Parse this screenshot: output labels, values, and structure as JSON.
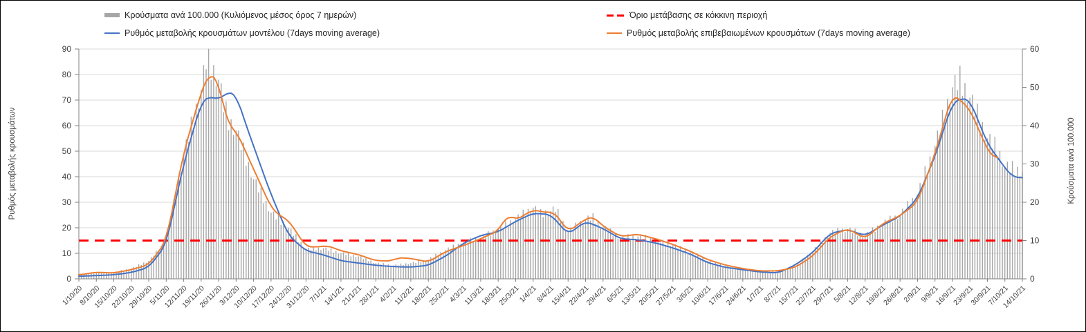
{
  "legend": {
    "items": [
      {
        "id": "cases-bars",
        "label": "Κρούσματα ανά 100.000 (Κυλιόμενος μέσος όρος 7 ημερών)",
        "type": "bar",
        "color": "#A6A6A6"
      },
      {
        "id": "model-line",
        "label": "Ρυθμός μεταβολής κρουσμάτων μοντέλου (7days moving average)",
        "type": "line",
        "color": "#4472C4"
      },
      {
        "id": "threshold-line",
        "label": "Όριο μετάβασης  σε κόκκινη περιοχή",
        "type": "dashed-line",
        "color": "#FF0000"
      },
      {
        "id": "confirmed-line",
        "label": "Ρυθμός μεταβολής επιβεβαιωμένων κρουσμάτων (7days moving average)",
        "type": "line",
        "color": "#ED7D31"
      }
    ]
  },
  "axes": {
    "left": {
      "title": "Ρυθμός μεταβολής κρουσμάτων",
      "ticks": [
        0,
        10,
        20,
        30,
        40,
        50,
        60,
        70,
        80,
        90
      ],
      "range": [
        0,
        90
      ]
    },
    "right": {
      "title": "Κρούσματα ανά 100.000",
      "ticks": [
        0,
        10,
        20,
        30,
        40,
        50,
        60
      ],
      "range": [
        0,
        60
      ]
    },
    "x": {
      "labels": [
        "1/10/20",
        "8/10/20",
        "15/10/20",
        "22/10/20",
        "29/10/20",
        "5/11/20",
        "12/11/20",
        "19/11/20",
        "26/11/20",
        "3/12/20",
        "10/12/20",
        "17/12/20",
        "24/12/20",
        "31/12/20",
        "7/1/21",
        "14/1/21",
        "21/1/21",
        "28/1/21",
        "4/2/21",
        "11/2/21",
        "18/2/21",
        "25/2/21",
        "4/3/21",
        "11/3/21",
        "18/3/21",
        "25/3/21",
        "1/4/21",
        "8/4/21",
        "15/4/21",
        "22/4/21",
        "29/4/21",
        "6/5/21",
        "13/5/21",
        "20/5/21",
        "27/5/21",
        "3/6/21",
        "10/6/21",
        "17/6/21",
        "24/6/21",
        "1/7/21",
        "8/7/21",
        "15/7/21",
        "22/7/21",
        "29/7/21",
        "5/8/21",
        "12/8/21",
        "19/8/21",
        "26/8/21",
        "2/9/21",
        "9/9/21",
        "16/9/21",
        "23/9/21",
        "30/9/21",
        "7/10/21",
        "14/10/21"
      ]
    }
  },
  "chart_data": {
    "type": "combo",
    "title": "",
    "x_tick_labels_weekly": true,
    "bars_are_daily": true,
    "grid": "horizontal",
    "legend_position": "top",
    "left_axis": {
      "label": "Ρυθμός μεταβολής κρουσμάτων",
      "range": [
        0,
        90
      ]
    },
    "right_axis": {
      "label": "Κρούσματα ανά 100.000",
      "range": [
        0,
        60
      ]
    },
    "threshold": {
      "name": "Όριο μετάβασης  σε κόκκινη περιοχή",
      "axis": "right",
      "value": 10,
      "left_axis_equivalent": 15,
      "color": "#FF0000",
      "style": "dashed"
    },
    "series": [
      {
        "id": "bars",
        "name": "Κρούσματα ανά 100.000 (Κυλιόμενος μέσος όρος 7 ημερών)",
        "type": "bar",
        "axis": "right",
        "color": "#A6A6A6",
        "weekly_values": [
          1.0,
          1.5,
          1.7,
          2.7,
          4.7,
          9.7,
          32.3,
          49.3,
          52.0,
          38.7,
          26.0,
          17.3,
          13.3,
          7.7,
          8.0,
          6.7,
          5.9,
          4.1,
          3.5,
          4.1,
          5.0,
          7.5,
          9.5,
          10.7,
          12.9,
          15.6,
          18.6,
          17.7,
          12.3,
          15.6,
          13.5,
          10.7,
          11.1,
          10.2,
          8.8,
          6.9,
          4.7,
          3.3,
          2.7,
          2.1,
          1.8,
          3.3,
          7.2,
          12.0,
          13.0,
          11.2,
          14.4,
          16.7,
          22.0,
          34.7,
          50.0,
          47.3,
          36.7,
          29.3,
          28.0
        ]
      },
      {
        "id": "model",
        "name": "Ρυθμός μεταβολής κρουσμάτων μοντέλου (7days moving average)",
        "type": "line",
        "axis": "left",
        "color": "#4472C4",
        "weekly_values": [
          1.0,
          1.3,
          1.6,
          2.5,
          4.5,
          13.5,
          45,
          69,
          70.2,
          72.2,
          52,
          33,
          17,
          11,
          9.4,
          7.1,
          6.2,
          5.3,
          4.8,
          4.6,
          5.3,
          8.9,
          13.9,
          17,
          18.4,
          22.5,
          25.7,
          25.2,
          17.5,
          22.5,
          19.7,
          15.7,
          15.3,
          14.1,
          12.1,
          9.7,
          6.3,
          4.5,
          3.6,
          2.7,
          2.3,
          5.4,
          10.3,
          17.8,
          19.3,
          16.9,
          21,
          24.5,
          31.5,
          48,
          69,
          70,
          53,
          43.5,
          39.5
        ]
      },
      {
        "id": "confirmed",
        "name": "Ρυθμός μεταβολής επιβεβαιωμένων κρουσμάτων (7days moving average)",
        "type": "line",
        "axis": "left",
        "color": "#ED7D31",
        "weekly_values": [
          1.5,
          2.6,
          2.3,
          3.6,
          5.5,
          14.8,
          49.5,
          73,
          77.5,
          58,
          43,
          28,
          23,
          12.5,
          12.6,
          11,
          9.5,
          7.1,
          7.0,
          8.0,
          6.6,
          10.7,
          13,
          15.7,
          18.8,
          23,
          27,
          25.7,
          18.5,
          23.4,
          20.6,
          16.6,
          17.5,
          15.7,
          13.5,
          10.8,
          7.5,
          5.4,
          4.0,
          3.1,
          3.1,
          4.5,
          8.9,
          16.5,
          19.7,
          15.8,
          21.6,
          24.7,
          30,
          49,
          72.5,
          66.5,
          50.5,
          null,
          null
        ]
      }
    ],
    "detail_anchors_note": "extra intra-week readings; day index counted from 1/10/20 = 0, bars in right-axis units, lines in left-axis units",
    "detail_anchors": {
      "bars": [
        [
          51,
          57.0
        ],
        [
          53,
          55.3
        ],
        [
          58,
          45.3
        ],
        [
          60,
          41.3
        ],
        [
          185,
          17.0
        ],
        [
          191,
          18.2
        ],
        [
          206,
          16.0
        ],
        [
          353,
          52.0
        ],
        [
          368,
          34.0
        ]
      ],
      "model": [
        [
          52,
          71.5
        ],
        [
          60,
          73.3
        ],
        [
          66,
          63.0
        ],
        [
          354,
          70.8
        ],
        [
          374,
          40.0
        ]
      ],
      "confirmed": [
        [
          52,
          80.5
        ],
        [
          54,
          79.0
        ],
        [
          58,
          67.0
        ],
        [
          60,
          60.0
        ],
        [
          80,
          25.0
        ],
        [
          99,
          13.2
        ],
        [
          127,
          8.3
        ],
        [
          172,
          25.3
        ],
        [
          190,
          26.8
        ],
        [
          206,
          24.5
        ],
        [
          366,
          48.0
        ],
        [
          368,
          47.0
        ]
      ]
    }
  },
  "colors": {
    "bars": "#A6A6A6",
    "model": "#4472C4",
    "confirmed": "#ED7D31",
    "threshold": "#FF0000",
    "grid": "#D9D9D9",
    "axis": "#808080",
    "text": "#404040",
    "legend_text": "#262626",
    "background": "#FFFFFF",
    "frame": "#000000"
  }
}
